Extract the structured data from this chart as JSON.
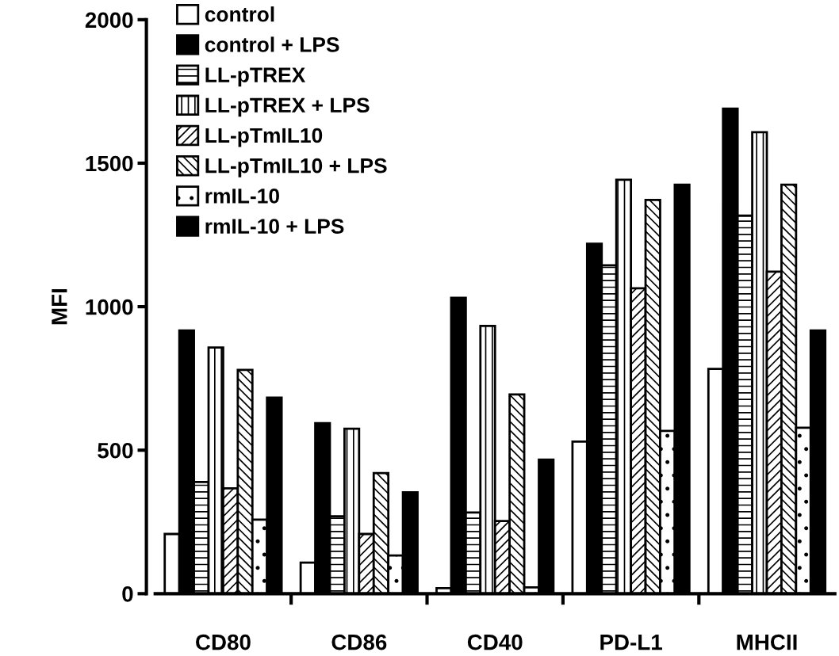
{
  "chart_data": {
    "type": "bar",
    "ylabel": "MFI",
    "categories": [
      "CD80",
      "CD86",
      "CD40",
      "PD-L1",
      "MHCII"
    ],
    "series": [
      {
        "name": "control",
        "color": "#ffffff",
        "values": [
          208,
          108,
          19,
          530,
          783
        ]
      },
      {
        "name": "control + LPS",
        "color": "#000000",
        "values": [
          917,
          594,
          1031,
          1219,
          1690
        ]
      },
      {
        "name": "LL-pTREX",
        "color": "#000000",
        "values": [
          389,
          270,
          283,
          1144,
          1317
        ]
      },
      {
        "name": "LL-pTREX + LPS",
        "color": "#000000",
        "values": [
          858,
          575,
          933,
          1442,
          1608
        ]
      },
      {
        "name": "LL-pTmIL10",
        "color": "#000000",
        "values": [
          367,
          208,
          253,
          1064,
          1122
        ]
      },
      {
        "name": "LL-pTmIL10 + LPS",
        "color": "#000000",
        "values": [
          780,
          420,
          694,
          1372,
          1425
        ]
      },
      {
        "name": "rmIL-10",
        "color": "#000000",
        "values": [
          258,
          133,
          22,
          567,
          578
        ]
      },
      {
        "name": "rmIL-10 + LPS",
        "color": "#000000",
        "values": [
          683,
          353,
          467,
          1425,
          917
        ]
      }
    ],
    "ylim": [
      0,
      2000
    ],
    "yticks": [
      0,
      500,
      1000,
      1500,
      2000
    ],
    "grid": false,
    "legend": "top left"
  }
}
